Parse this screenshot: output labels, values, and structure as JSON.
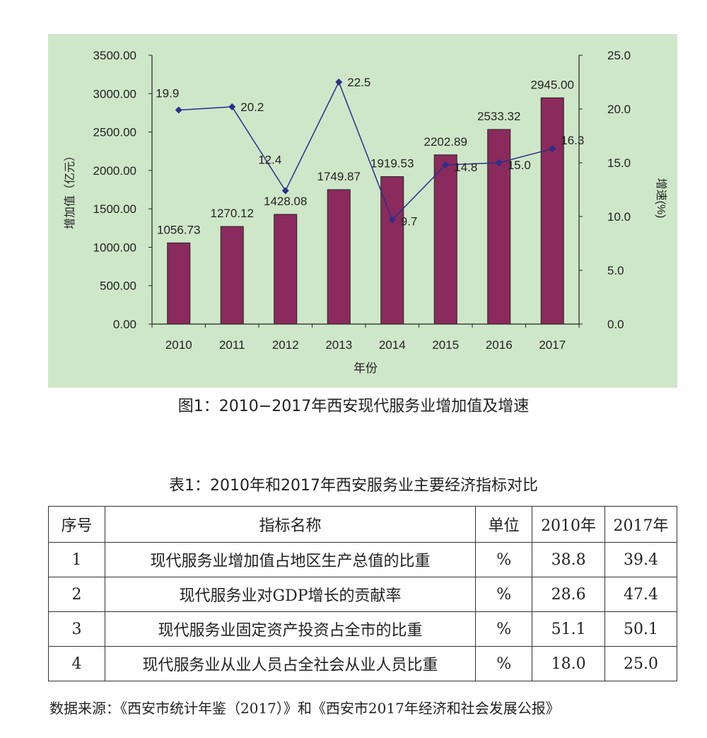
{
  "chart_data": {
    "type": "bar",
    "categories": [
      "2010",
      "2011",
      "2012",
      "2013",
      "2014",
      "2015",
      "2016",
      "2017"
    ],
    "series": [
      {
        "type": "bar",
        "axis": "left",
        "values": [
          1056.73,
          1270.12,
          1428.08,
          1749.87,
          1919.53,
          2202.89,
          2533.32,
          2945.0
        ],
        "labels": [
          "1056.73",
          "1270.12",
          "1428.08",
          "1749.87",
          "1919.53",
          "2202.89",
          "2533.32",
          "2945.00"
        ],
        "color": "#8b2a5c"
      },
      {
        "type": "line",
        "axis": "right",
        "values": [
          19.9,
          20.2,
          12.4,
          22.5,
          9.7,
          14.8,
          15.0,
          16.3
        ],
        "labels": [
          "19.9",
          "20.2",
          "12.4",
          "22.5",
          "9.7",
          "14.8",
          "15.0",
          "16.3"
        ],
        "color": "#2b2f8a"
      }
    ],
    "xlabel": "年份",
    "ylabel": "增加值（亿元）",
    "y2label": "增速(%)",
    "ylim": [
      0,
      3500
    ],
    "y2lim": [
      0,
      25
    ],
    "yticks": [
      "0.00",
      "500.00",
      "1000.00",
      "1500.00",
      "2000.00",
      "2500.00",
      "3000.00",
      "3500.00"
    ],
    "y2ticks": [
      "0.0",
      "5.0",
      "10.0",
      "15.0",
      "20.0",
      "25.0"
    ],
    "grid": false,
    "legend": "none",
    "background": "#cfe7c9"
  },
  "figure_caption": "图1：2010−2017年西安现代服务业增加值及增速",
  "table": {
    "title": "表1：2010年和2017年西安服务业主要经济指标对比",
    "headers": [
      "序号",
      "指标名称",
      "单位",
      "2010年",
      "2017年"
    ],
    "rows": [
      [
        "1",
        "现代服务业增加值占地区生产总值的比重",
        "%",
        "38.8",
        "39.4"
      ],
      [
        "2",
        "现代服务业对GDP增长的贡献率",
        "%",
        "28.6",
        "47.4"
      ],
      [
        "3",
        "现代服务业固定资产投资占全市的比重",
        "%",
        "51.1",
        "50.1"
      ],
      [
        "4",
        "现代服务业从业人员占全社会从业人员比重",
        "%",
        "18.0",
        "25.0"
      ]
    ]
  },
  "source_note": "数据来源：《西安市统计年鉴（2017）》和《西安市2017年经济和社会发展公报》"
}
